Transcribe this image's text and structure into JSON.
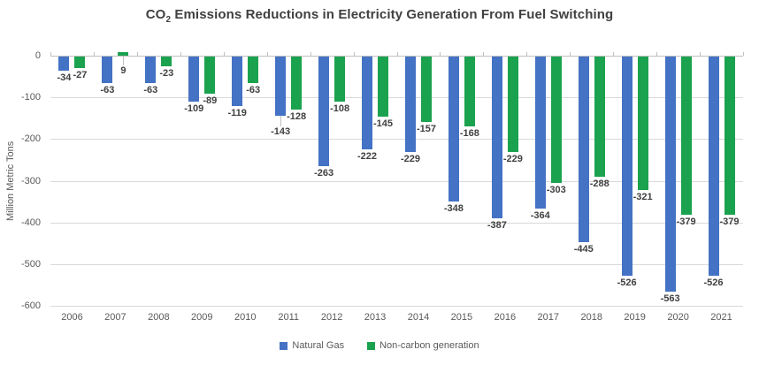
{
  "title_parts": {
    "prefix": "CO",
    "sub": "2",
    "rest": " Emissions Reductions in Electricity Generation From Fuel Switching"
  },
  "chart_data": {
    "type": "bar",
    "title": "CO₂ Emissions Reductions in Electricity Generation From Fuel Switching",
    "xlabel": "",
    "ylabel": "Million Metric Tons",
    "categories": [
      "2006",
      "2007",
      "2008",
      "2009",
      "2010",
      "2011",
      "2012",
      "2013",
      "2014",
      "2015",
      "2016",
      "2017",
      "2018",
      "2019",
      "2020",
      "2021"
    ],
    "series": [
      {
        "name": "Natural Gas",
        "color": "#4472C4",
        "values": [
          -34,
          -63,
          -63,
          -109,
          -119,
          -143,
          -263,
          -222,
          -229,
          -348,
          -387,
          -364,
          -445,
          -526,
          -563,
          -526
        ]
      },
      {
        "name": "Non-carbon generation",
        "color": "#1BA24E",
        "values": [
          -27,
          9,
          -23,
          -89,
          -63,
          -128,
          -108,
          -145,
          -157,
          -168,
          -229,
          -303,
          -288,
          -321,
          -379,
          -379
        ]
      }
    ],
    "ylim": [
      -600,
      0
    ],
    "yticks": [
      0,
      -100,
      -200,
      -300,
      -400,
      -500,
      -600
    ],
    "grid": "horizontal",
    "legend_position": "bottom",
    "data_labels": true,
    "label_hints": [
      {
        "category": "2007",
        "series": "Non-carbon generation",
        "leader": true
      },
      {
        "category": "2011",
        "series": "Natural Gas",
        "dy": 10,
        "leader": true
      }
    ],
    "colors": {
      "gridline": "#D9D9D9",
      "zero_axis": "#BFBFBF",
      "axis_text": "#595959",
      "data_label_text": "#404040",
      "title_text": "#404040"
    }
  }
}
